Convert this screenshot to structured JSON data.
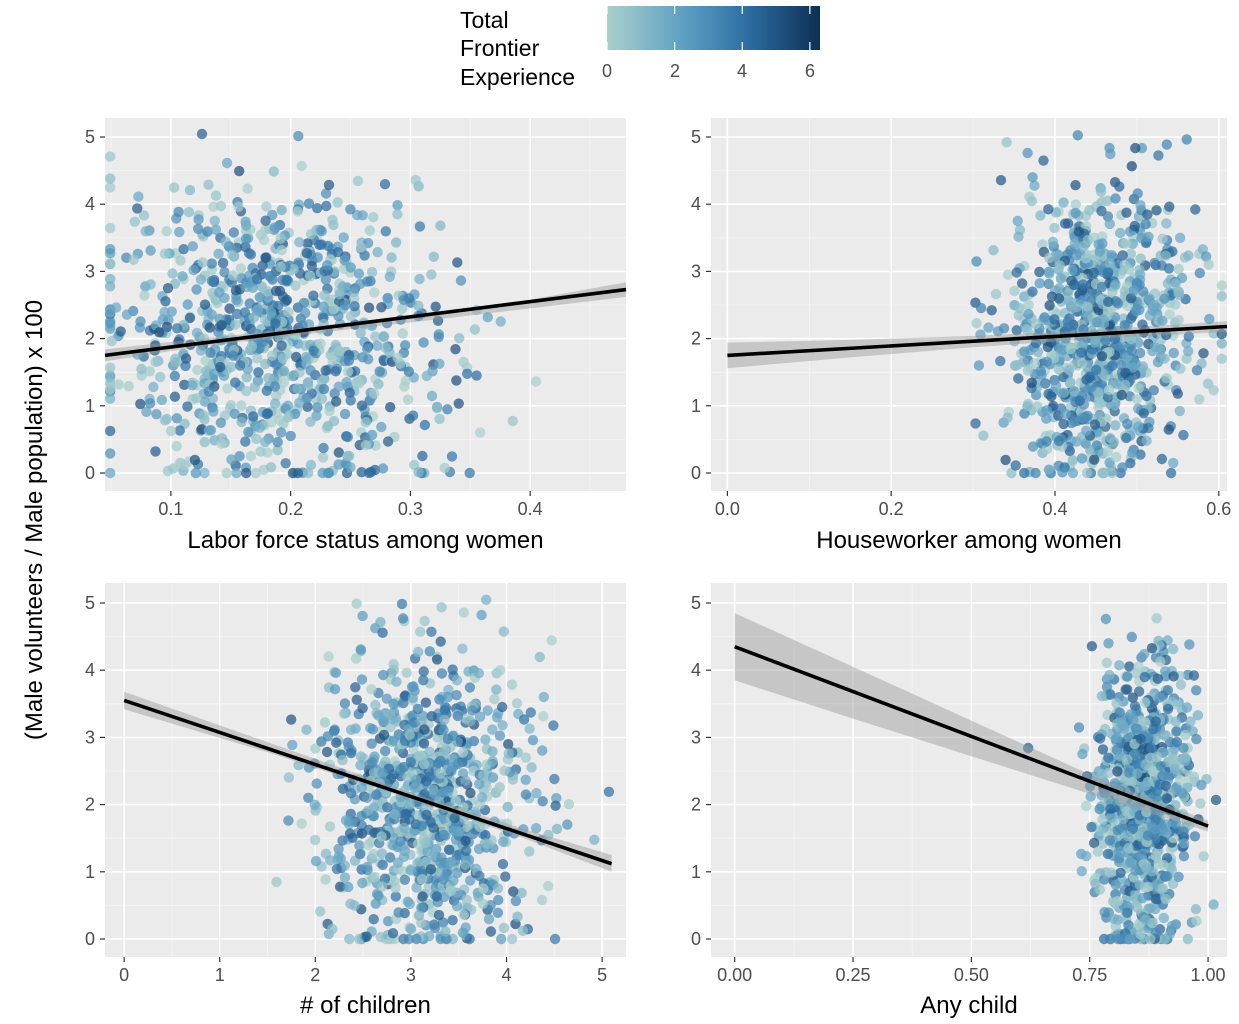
{
  "ylabel": "(Male volunteers / Male population) x 100",
  "legend": {
    "title_lines": [
      "Total",
      "Frontier",
      "Experience"
    ],
    "ticks": [
      "0",
      "2",
      "4",
      "6"
    ],
    "tick_values": [
      0,
      2,
      4,
      6
    ],
    "range": [
      0,
      6.3
    ],
    "colors": [
      "#A9CFCB",
      "#5FA1C4",
      "#2E6FA4",
      "#0E2F54"
    ]
  },
  "chart_data": [
    {
      "type": "scatter",
      "xlabel": "Labor force status among women",
      "xlim": [
        0.045,
        0.48
      ],
      "ylim": [
        0,
        5.1
      ],
      "xticks": [
        0.1,
        0.2,
        0.3,
        0.4
      ],
      "xtick_labels": [
        "0.1",
        "0.2",
        "0.3",
        "0.4"
      ],
      "yticks": [
        0,
        1,
        2,
        3,
        4,
        5
      ],
      "ytick_labels": [
        "0",
        "1",
        "2",
        "3",
        "4",
        "5"
      ],
      "n_points": 900,
      "point_center_x": 0.19,
      "point_spread_x": 0.07,
      "point_center_y": 2.0,
      "point_spread_y": 1.1,
      "fit_line": {
        "x": [
          0.045,
          0.48
        ],
        "y": [
          1.75,
          2.73
        ]
      },
      "ci_band": {
        "x": [
          0.045,
          0.12,
          0.2,
          0.3,
          0.4,
          0.48
        ],
        "lower": [
          1.66,
          1.87,
          2.04,
          2.24,
          2.45,
          2.62
        ],
        "upper": [
          1.84,
          1.99,
          2.14,
          2.35,
          2.58,
          2.84
        ]
      }
    },
    {
      "type": "scatter",
      "xlabel": "Houseworker among women",
      "xlim": [
        -0.02,
        0.61
      ],
      "ylim": [
        0,
        5.1
      ],
      "xticks": [
        0.0,
        0.2,
        0.4,
        0.6
      ],
      "xtick_labels": [
        "0.0",
        "0.2",
        "0.4",
        "0.6"
      ],
      "yticks": [
        0,
        1,
        2,
        3,
        4,
        5
      ],
      "ytick_labels": [
        "0",
        "1",
        "2",
        "3",
        "4",
        "5"
      ],
      "n_points": 900,
      "point_center_x": 0.45,
      "point_spread_x": 0.055,
      "point_center_y": 2.0,
      "point_spread_y": 1.1,
      "fit_line": {
        "x": [
          0.0,
          0.61
        ],
        "y": [
          1.75,
          2.18
        ]
      },
      "ci_band": {
        "x": [
          0.0,
          0.15,
          0.3,
          0.45,
          0.61
        ],
        "lower": [
          1.56,
          1.72,
          1.87,
          2.0,
          2.1
        ],
        "upper": [
          1.94,
          1.98,
          2.04,
          2.13,
          2.26
        ]
      }
    },
    {
      "type": "scatter",
      "xlabel": "# of children",
      "xlim": [
        -0.2,
        5.25
      ],
      "ylim": [
        0,
        5.1
      ],
      "xticks": [
        0,
        1,
        2,
        3,
        4,
        5
      ],
      "xtick_labels": [
        "0",
        "1",
        "2",
        "3",
        "4",
        "5"
      ],
      "yticks": [
        0,
        1,
        2,
        3,
        4,
        5
      ],
      "ytick_labels": [
        "0",
        "1",
        "2",
        "3",
        "4",
        "5"
      ],
      "n_points": 900,
      "point_center_x": 3.1,
      "point_spread_x": 0.55,
      "point_center_y": 2.1,
      "point_spread_y": 1.1,
      "fit_line": {
        "x": [
          0.0,
          5.1
        ],
        "y": [
          3.55,
          1.12
        ]
      },
      "ci_band": {
        "x": [
          0.0,
          1.5,
          3.0,
          4.2,
          5.1
        ],
        "lower": [
          3.42,
          2.78,
          2.08,
          1.49,
          1.0
        ],
        "upper": [
          3.68,
          2.93,
          2.18,
          1.63,
          1.25
        ]
      }
    },
    {
      "type": "scatter",
      "xlabel": "Any child",
      "xlim": [
        -0.05,
        1.04
      ],
      "ylim": [
        0,
        5.1
      ],
      "xticks": [
        0.0,
        0.25,
        0.5,
        0.75,
        1.0
      ],
      "xtick_labels": [
        "0.00",
        "0.25",
        "0.50",
        "0.75",
        "1.00"
      ],
      "yticks": [
        0,
        1,
        2,
        3,
        4,
        5
      ],
      "ytick_labels": [
        "0",
        "1",
        "2",
        "3",
        "4",
        "5"
      ],
      "n_points": 900,
      "point_center_x": 0.86,
      "point_spread_x": 0.05,
      "point_center_y": 2.0,
      "point_spread_y": 1.1,
      "fit_line": {
        "x": [
          0.0,
          1.0
        ],
        "y": [
          4.35,
          1.68
        ]
      },
      "ci_band": {
        "x": [
          0.0,
          0.25,
          0.5,
          0.75,
          1.0
        ],
        "lower": [
          3.85,
          3.28,
          2.72,
          2.16,
          1.6
        ],
        "upper": [
          4.85,
          4.05,
          3.25,
          2.45,
          1.76
        ]
      }
    }
  ]
}
